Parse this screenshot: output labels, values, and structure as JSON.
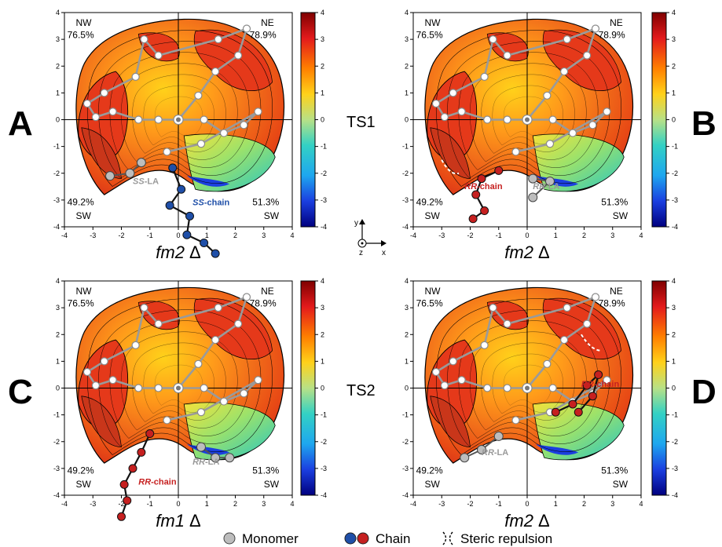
{
  "panels": [
    {
      "letter": "A",
      "quadrants": {
        "nw": [
          "NW",
          "76.5%"
        ],
        "ne": [
          "NE",
          "78.9%"
        ],
        "sw": [
          "49.2%",
          "SW"
        ],
        "se": [
          "51.3%",
          "SW"
        ]
      },
      "xlabel_var": "fm2",
      "xlabel_sym": "Δ",
      "chain_label": {
        "prefix": "SS",
        "suffix": "-chain"
      },
      "la_label": {
        "prefix": "SS",
        "suffix": "-LA"
      },
      "chain_color": "#1f4fa8"
    },
    {
      "letter": "B",
      "quadrants": {
        "nw": [
          "NW",
          "76.5%"
        ],
        "ne": [
          "NE",
          "78.9%"
        ],
        "sw": [
          "49.2%",
          "SW"
        ],
        "se": [
          "51.3%",
          "SW"
        ]
      },
      "xlabel_var": "fm2",
      "xlabel_sym": "Δ",
      "chain_label": {
        "prefix": "RR",
        "suffix": "-chain"
      },
      "la_label": {
        "prefix": "RR",
        "suffix": "-LA"
      },
      "chain_color": "#c62020"
    },
    {
      "letter": "C",
      "quadrants": {
        "nw": [
          "NW",
          "76.5%"
        ],
        "ne": [
          "NE",
          "78.9%"
        ],
        "sw": [
          "49.2%",
          "SW"
        ],
        "se": [
          "51.3%",
          "SW"
        ]
      },
      "xlabel_var": "fm1",
      "xlabel_sym": "Δ",
      "chain_label": {
        "prefix": "RR",
        "suffix": "-chain"
      },
      "la_label": {
        "prefix": "RR",
        "suffix": "-LA"
      },
      "chain_color": "#c62020"
    },
    {
      "letter": "D",
      "quadrants": {
        "nw": [
          "NW",
          "76.5%"
        ],
        "ne": [
          "NE",
          "78.9%"
        ],
        "sw": [
          "49.2%",
          "SW"
        ],
        "se": [
          "51.3%",
          "SW"
        ]
      },
      "xlabel_var": "fm2",
      "xlabel_sym": "Δ",
      "chain_label": {
        "prefix": "RR",
        "suffix": "-chain"
      },
      "la_label": {
        "prefix": "RR",
        "suffix": "-LA"
      },
      "chain_color": "#c62020"
    }
  ],
  "axis_ticks": [
    "-4",
    "-3",
    "-2",
    "-1",
    "0",
    "1",
    "2",
    "3",
    "4"
  ],
  "colorbar_ticks": [
    "4",
    "3",
    "2",
    "1",
    "0",
    "-1",
    "-2",
    "-3",
    "-4"
  ],
  "ts_labels": [
    "TS1",
    "TS2"
  ],
  "axes_icon": {
    "y": "y",
    "x": "x",
    "z": "z"
  },
  "legend": [
    {
      "label": "Monomer",
      "icon": "gray-circle"
    },
    {
      "label": "Chain",
      "icon": "blue-red-circles"
    },
    {
      "label": "Steric repulsion",
      "icon": "repulsion-symbol"
    }
  ],
  "colors": {
    "monomer": "#bdbdbd",
    "chain_blue": "#1f4fa8",
    "chain_red": "#c62020",
    "bond_gray": "#9a9a9a"
  }
}
